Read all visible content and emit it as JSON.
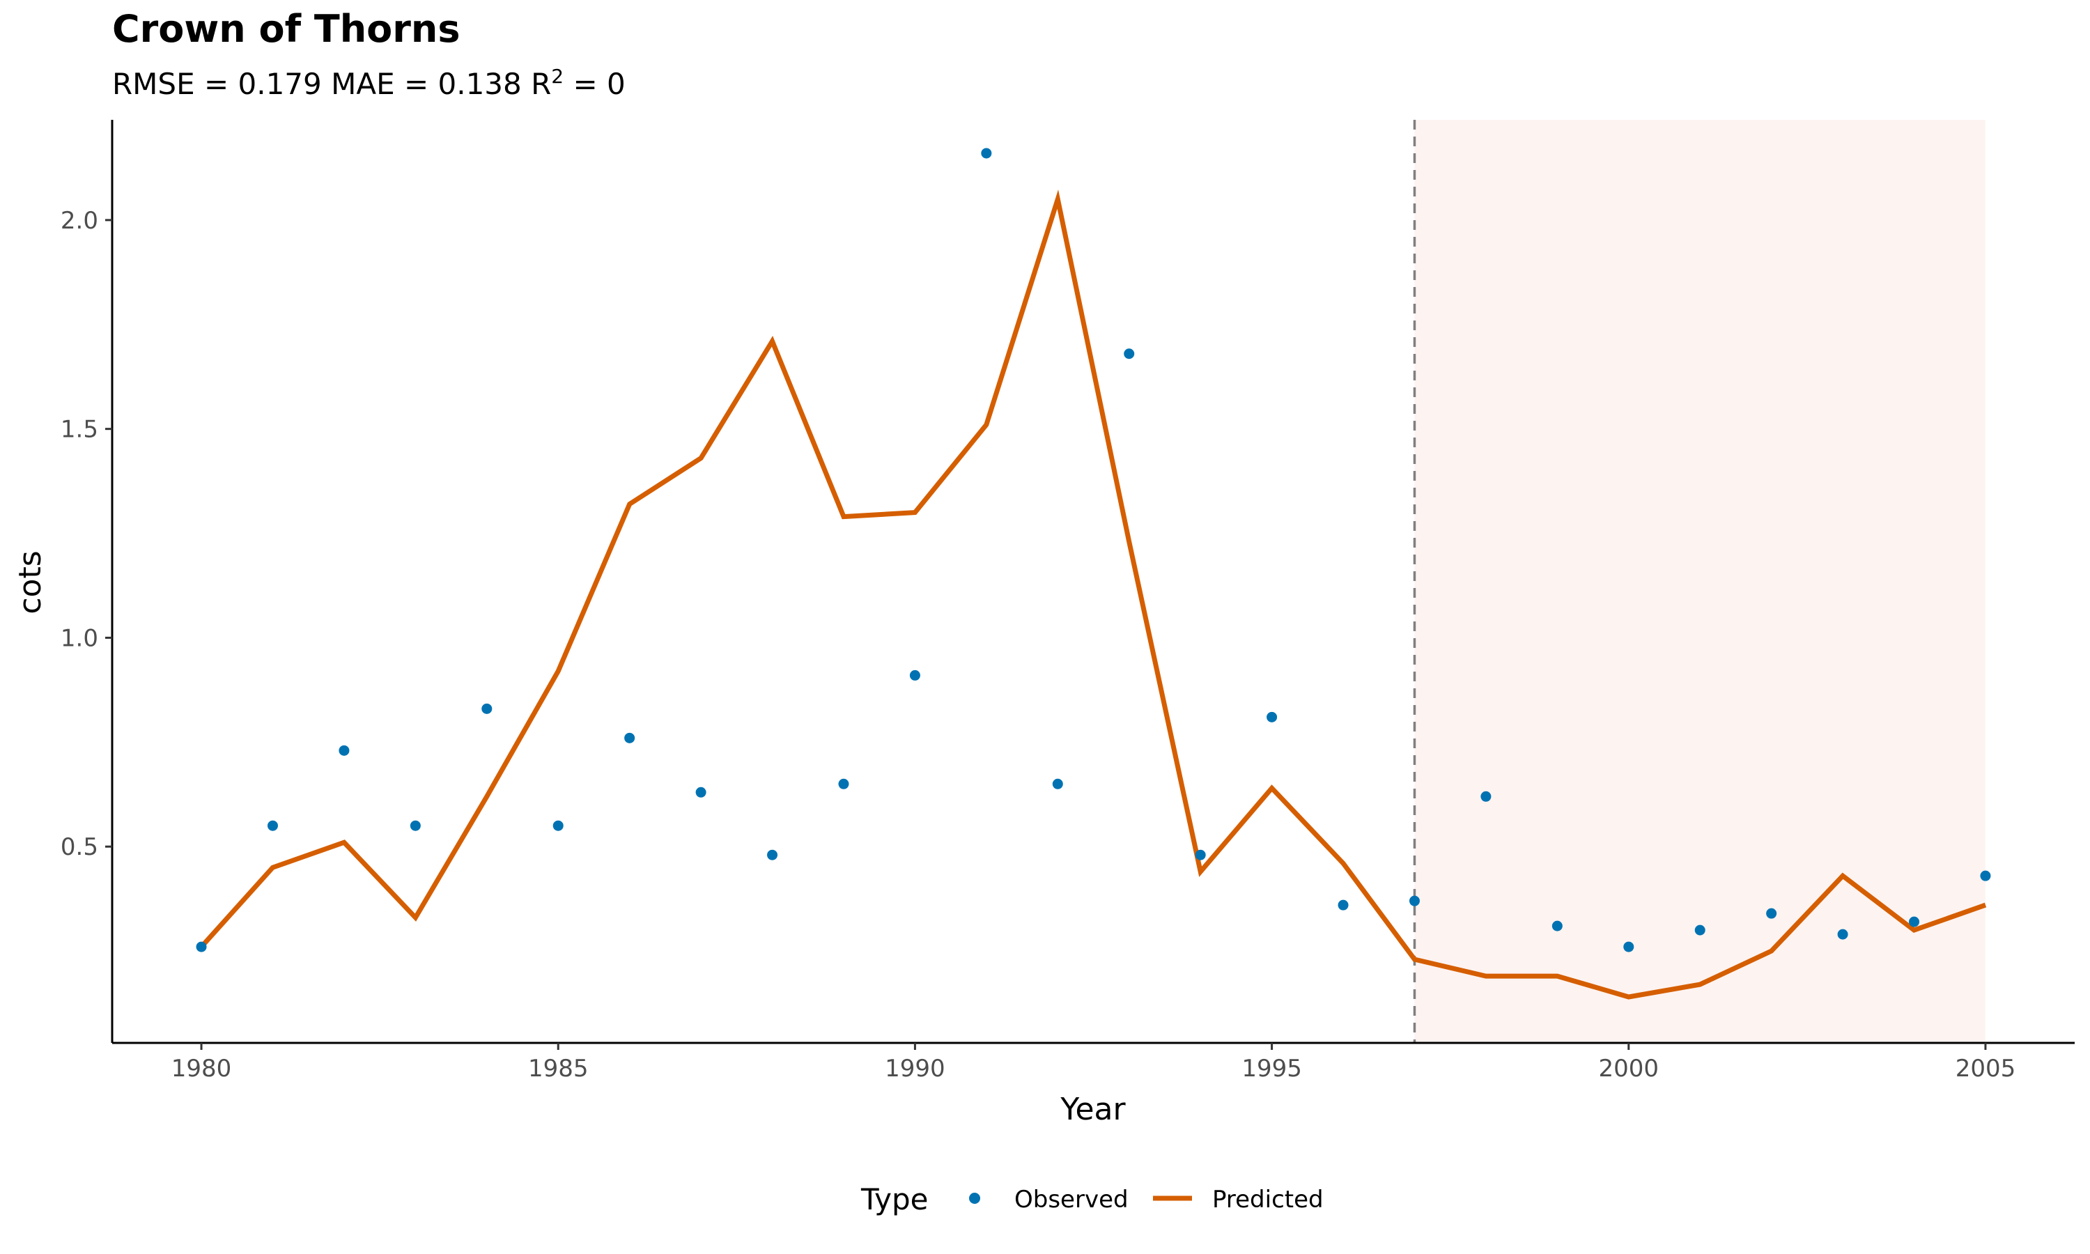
{
  "chart_data": {
    "type": "line",
    "title": "Crown of Thorns",
    "subtitle": {
      "text_before_sup": "RMSE = 0.179 MAE = 0.138 R",
      "sup": "2",
      "text_after_sup": " = 0"
    },
    "xlabel": "Year",
    "ylabel": "cots",
    "xlim": [
      1978.75,
      2006.25
    ],
    "ylim": [
      0.03,
      2.24
    ],
    "x_ticks": [
      1980,
      1985,
      1990,
      1995,
      2000,
      2005
    ],
    "x_tick_labels": [
      "1980",
      "1985",
      "1990",
      "1995",
      "2000",
      "2005"
    ],
    "y_ticks": [
      0.5,
      1.0,
      1.5,
      2.0
    ],
    "y_tick_labels": [
      "0.5",
      "1.0",
      "1.5",
      "2.0"
    ],
    "grid": false,
    "forecast_start": 1997,
    "forecast_end": 2005,
    "forecast_region_color": "#fdf3f1",
    "forecast_line_color": "#808080",
    "legend": {
      "title": "Type",
      "position": "bottom",
      "entries": [
        {
          "label": "Observed",
          "kind": "point",
          "color": "#0072b2"
        },
        {
          "label": "Predicted",
          "kind": "line",
          "color": "#d55e00"
        }
      ]
    },
    "series": [
      {
        "name": "Observed",
        "kind": "point",
        "color": "#0072b2",
        "x": [
          1980,
          1981,
          1982,
          1983,
          1984,
          1985,
          1986,
          1987,
          1988,
          1989,
          1990,
          1991,
          1992,
          1993,
          1994,
          1995,
          1996,
          1997,
          1998,
          1999,
          2000,
          2001,
          2002,
          2003,
          2004,
          2005
        ],
        "y": [
          0.26,
          0.55,
          0.73,
          0.55,
          0.83,
          0.55,
          0.76,
          0.63,
          0.48,
          0.65,
          0.91,
          2.16,
          0.65,
          1.68,
          0.48,
          0.81,
          0.36,
          0.37,
          0.62,
          0.31,
          0.26,
          0.3,
          0.34,
          0.29,
          0.32,
          0.43
        ]
      },
      {
        "name": "Predicted",
        "kind": "line",
        "color": "#d55e00",
        "x": [
          1980,
          1981,
          1982,
          1983,
          1984,
          1985,
          1986,
          1987,
          1988,
          1989,
          1990,
          1991,
          1992,
          1993,
          1994,
          1995,
          1996,
          1997,
          1998,
          1999,
          2000,
          2001,
          2002,
          2003,
          2004,
          2005
        ],
        "y": [
          0.26,
          0.45,
          0.51,
          0.33,
          0.62,
          0.92,
          1.32,
          1.43,
          1.71,
          1.29,
          1.3,
          1.51,
          2.05,
          1.23,
          0.44,
          0.64,
          0.46,
          0.23,
          0.19,
          0.19,
          0.14,
          0.17,
          0.25,
          0.43,
          0.3,
          0.36
        ]
      }
    ]
  }
}
